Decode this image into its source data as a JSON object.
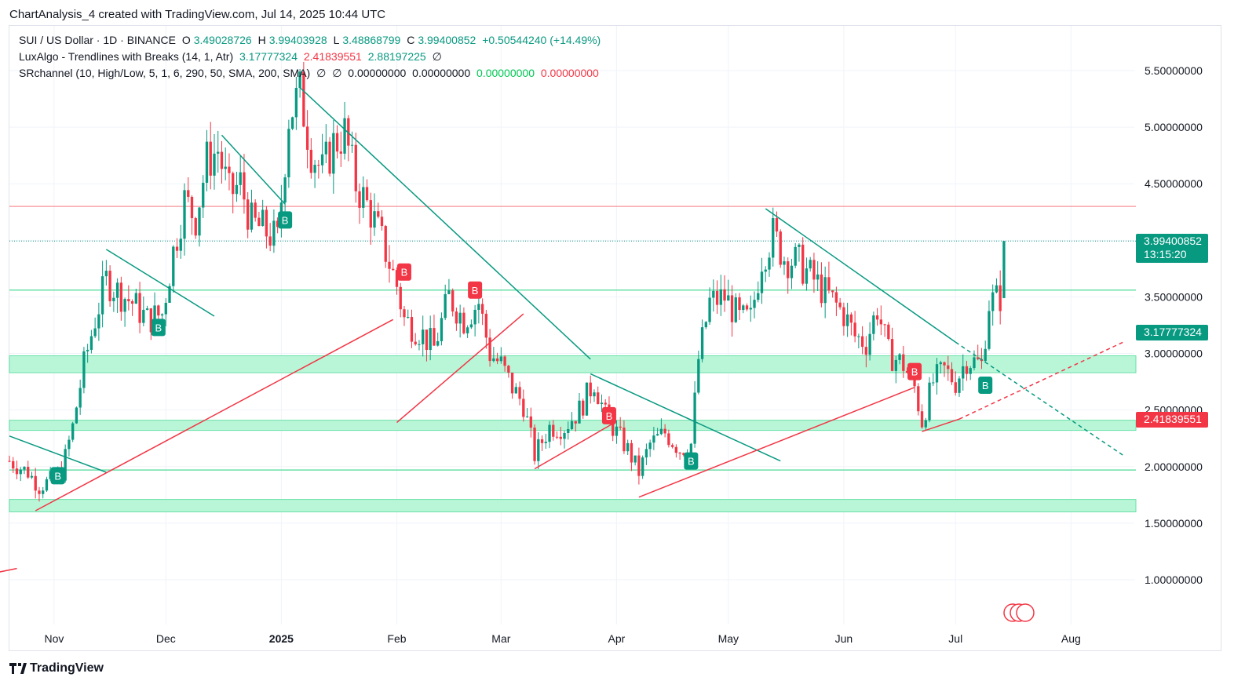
{
  "header": {
    "title": "ChartAnalysis_4 created with TradingView.com, Jul 14, 2025 10:44 UTC"
  },
  "legend": {
    "symbol": "SUI / US Dollar · 1D · BINANCE",
    "open_label": "O",
    "open": "3.49028726",
    "high_label": "H",
    "high": "3.99403928",
    "low_label": "L",
    "low": "3.48868799",
    "close_label": "C",
    "close": "3.99400852",
    "change": "+0.50544240 (+14.49%)",
    "lux_name": "LuxAlgo - Trendlines with Breaks (14, 1, Atr)",
    "lux_v1": "3.17777324",
    "lux_v2": "2.41839551",
    "lux_v3": "2.88197225",
    "sr_name": "SRchannel (10, High/Low, 5, 1, 6, 290, 50, SMA, 200, SMA)",
    "sr_v1": "0.00000000",
    "sr_v2": "0.00000000",
    "sr_v3": "0.00000000",
    "sr_v4": "0.00000000",
    "empty_symbol": "∅"
  },
  "price_tags": {
    "last_price": "3.99400852",
    "countdown": "13:15:20",
    "lux_upper": "3.17777324",
    "lux_lower": "2.41839551"
  },
  "footer": {
    "brand": "TradingView"
  },
  "colors": {
    "up": "#089981",
    "down": "#f23645",
    "zone": "#b9f6d8",
    "zone_line": "#69e0a8",
    "resistance": "#f7a3a8",
    "trend_green": "#089981",
    "trend_red": "#f23645"
  },
  "chart_data": {
    "type": "candlestick",
    "symbol": "SUI / US Dollar",
    "timeframe": "1D",
    "exchange": "BINANCE",
    "y_axis": {
      "ticks": [
        1.0,
        1.5,
        2.0,
        2.5,
        3.0,
        3.5,
        4.0,
        4.5,
        5.0,
        5.5
      ],
      "tick_labels": [
        "1.00000000",
        "1.50000000",
        "2.00000000",
        "2.50000000",
        "3.00000000",
        "3.50000000",
        "",
        "4.50000000",
        "5.00000000",
        "5.50000000"
      ],
      "range": [
        0.65,
        5.85
      ]
    },
    "x_axis": {
      "labels": [
        {
          "date": "2024-11-01",
          "text": "Nov"
        },
        {
          "date": "2024-12-01",
          "text": "Dec"
        },
        {
          "date": "2025-01-01",
          "text": "2025"
        },
        {
          "date": "2025-02-01",
          "text": "Feb"
        },
        {
          "date": "2025-03-01",
          "text": "Mar"
        },
        {
          "date": "2025-04-01",
          "text": "Apr"
        },
        {
          "date": "2025-05-01",
          "text": "May"
        },
        {
          "date": "2025-06-01",
          "text": "Jun"
        },
        {
          "date": "2025-07-01",
          "text": "Jul"
        },
        {
          "date": "2025-08-01",
          "text": "Aug"
        }
      ],
      "range": [
        "2024-10-20",
        "2025-08-18"
      ]
    },
    "closes": [
      [
        "2024-10-20",
        2.05
      ],
      [
        "2024-10-25",
        1.95
      ],
      [
        "2024-10-28",
        1.82
      ],
      [
        "2024-10-31",
        1.88
      ],
      [
        "2024-11-03",
        1.95
      ],
      [
        "2024-11-06",
        2.35
      ],
      [
        "2024-11-09",
        2.9
      ],
      [
        "2024-11-12",
        3.3
      ],
      [
        "2024-11-15",
        3.65
      ],
      [
        "2024-11-18",
        3.55
      ],
      [
        "2024-11-22",
        3.45
      ],
      [
        "2024-11-26",
        3.3
      ],
      [
        "2024-11-30",
        3.35
      ],
      [
        "2024-12-03",
        3.9
      ],
      [
        "2024-12-06",
        4.35
      ],
      [
        "2024-12-09",
        4.2
      ],
      [
        "2024-12-12",
        4.7
      ],
      [
        "2024-12-15",
        4.8
      ],
      [
        "2024-12-18",
        4.4
      ],
      [
        "2024-12-21",
        4.5
      ],
      [
        "2024-12-24",
        4.15
      ],
      [
        "2024-12-27",
        4.1
      ],
      [
        "2024-12-31",
        4.0
      ],
      [
        "2025-01-03",
        5.1
      ],
      [
        "2025-01-06",
        5.3
      ],
      [
        "2025-01-09",
        4.8
      ],
      [
        "2025-01-12",
        4.6
      ],
      [
        "2025-01-15",
        4.85
      ],
      [
        "2025-01-18",
        4.95
      ],
      [
        "2025-01-21",
        4.5
      ],
      [
        "2025-01-25",
        4.25
      ],
      [
        "2025-01-29",
        3.9
      ],
      [
        "2025-02-01",
        3.6
      ],
      [
        "2025-02-03",
        3.3
      ],
      [
        "2025-02-07",
        3.2
      ],
      [
        "2025-02-11",
        3.05
      ],
      [
        "2025-02-15",
        3.5
      ],
      [
        "2025-02-19",
        3.3
      ],
      [
        "2025-02-23",
        3.45
      ],
      [
        "2025-02-26",
        3.0
      ],
      [
        "2025-03-01",
        2.9
      ],
      [
        "2025-03-04",
        2.7
      ],
      [
        "2025-03-07",
        2.55
      ],
      [
        "2025-03-10",
        2.1
      ],
      [
        "2025-03-14",
        2.35
      ],
      [
        "2025-03-18",
        2.35
      ],
      [
        "2025-03-22",
        2.5
      ],
      [
        "2025-03-26",
        2.75
      ],
      [
        "2025-03-29",
        2.45
      ],
      [
        "2025-04-01",
        2.3
      ],
      [
        "2025-04-04",
        2.15
      ],
      [
        "2025-04-07",
        1.95
      ],
      [
        "2025-04-10",
        2.2
      ],
      [
        "2025-04-14",
        2.3
      ],
      [
        "2025-04-18",
        2.15
      ],
      [
        "2025-04-21",
        2.2
      ],
      [
        "2025-04-23",
        2.95
      ],
      [
        "2025-04-26",
        3.45
      ],
      [
        "2025-04-30",
        3.5
      ],
      [
        "2025-05-04",
        3.3
      ],
      [
        "2025-05-07",
        3.3
      ],
      [
        "2025-05-10",
        3.85
      ],
      [
        "2025-05-13",
        4.05
      ],
      [
        "2025-05-16",
        3.85
      ],
      [
        "2025-05-20",
        3.8
      ],
      [
        "2025-05-24",
        3.65
      ],
      [
        "2025-05-28",
        3.5
      ],
      [
        "2025-06-01",
        3.35
      ],
      [
        "2025-06-04",
        3.15
      ],
      [
        "2025-06-07",
        3.1
      ],
      [
        "2025-06-10",
        3.4
      ],
      [
        "2025-06-13",
        3.0
      ],
      [
        "2025-06-17",
        2.9
      ],
      [
        "2025-06-20",
        2.7
      ],
      [
        "2025-06-22",
        2.4
      ],
      [
        "2025-06-25",
        2.75
      ],
      [
        "2025-06-28",
        2.85
      ],
      [
        "2025-07-01",
        2.75
      ],
      [
        "2025-07-04",
        2.95
      ],
      [
        "2025-07-08",
        2.9
      ],
      [
        "2025-07-10",
        3.45
      ],
      [
        "2025-07-13",
        3.5
      ],
      [
        "2025-07-14",
        3.994
      ]
    ],
    "support_zones": [
      [
        1.6,
        1.71
      ],
      [
        2.32,
        2.41
      ],
      [
        2.83,
        2.98
      ]
    ],
    "support_lines": [
      1.97,
      3.56
    ],
    "resistance_line": 4.3,
    "current_price_line": 3.994,
    "trendlines_green": [
      [
        [
          "2024-10-20",
          2.27
        ],
        [
          "2024-11-15",
          1.95
        ]
      ],
      [
        [
          "2024-11-15",
          3.92
        ],
        [
          "2024-12-14",
          3.33
        ]
      ],
      [
        [
          "2024-12-16",
          4.93
        ],
        [
          "2025-01-02",
          4.32
        ]
      ],
      [
        [
          "2025-01-06",
          5.35
        ],
        [
          "2025-03-25",
          2.95
        ]
      ],
      [
        [
          "2025-03-25",
          2.82
        ],
        [
          "2025-05-15",
          2.05
        ]
      ],
      [
        [
          "2025-05-11",
          4.28
        ],
        [
          "2025-07-01",
          3.1
        ]
      ]
    ],
    "trendlines_green_dashed": [
      [
        [
          "2025-07-01",
          3.1
        ],
        [
          "2025-08-15",
          2.1
        ]
      ]
    ],
    "trendlines_red": [
      [
        [
          "2024-10-16",
          1.06
        ],
        [
          "2024-10-22",
          1.1
        ]
      ],
      [
        [
          "2024-10-27",
          1.61
        ],
        [
          "2025-01-31",
          3.3
        ]
      ],
      [
        [
          "2025-02-01",
          2.39
        ],
        [
          "2025-03-07",
          3.35
        ]
      ],
      [
        [
          "2025-03-10",
          1.98
        ],
        [
          "2025-03-31",
          2.38
        ]
      ],
      [
        [
          "2025-04-07",
          1.73
        ],
        [
          "2025-06-20",
          2.7
        ]
      ],
      [
        [
          "2025-06-22",
          2.31
        ],
        [
          "2025-07-02",
          2.42
        ]
      ]
    ],
    "trendlines_red_dashed": [
      [
        [
          "2025-07-02",
          2.42
        ],
        [
          "2025-08-15",
          3.1
        ]
      ]
    ],
    "signals": [
      {
        "date": "2024-11-02",
        "type": "B",
        "price": 1.92
      },
      {
        "date": "2024-11-29",
        "type": "B",
        "price": 3.23
      },
      {
        "date": "2025-01-02",
        "type": "B",
        "price": 4.18
      },
      {
        "date": "2025-02-03",
        "type": "B",
        "price": 3.72
      },
      {
        "date": "2025-02-22",
        "type": "B",
        "price": 3.56
      },
      {
        "date": "2025-03-30",
        "type": "B",
        "price": 2.45
      },
      {
        "date": "2025-04-21",
        "type": "B",
        "price": 2.05
      },
      {
        "date": "2025-06-20",
        "type": "B",
        "price": 2.84
      },
      {
        "date": "2025-07-09",
        "type": "B",
        "price": 2.72
      }
    ]
  }
}
